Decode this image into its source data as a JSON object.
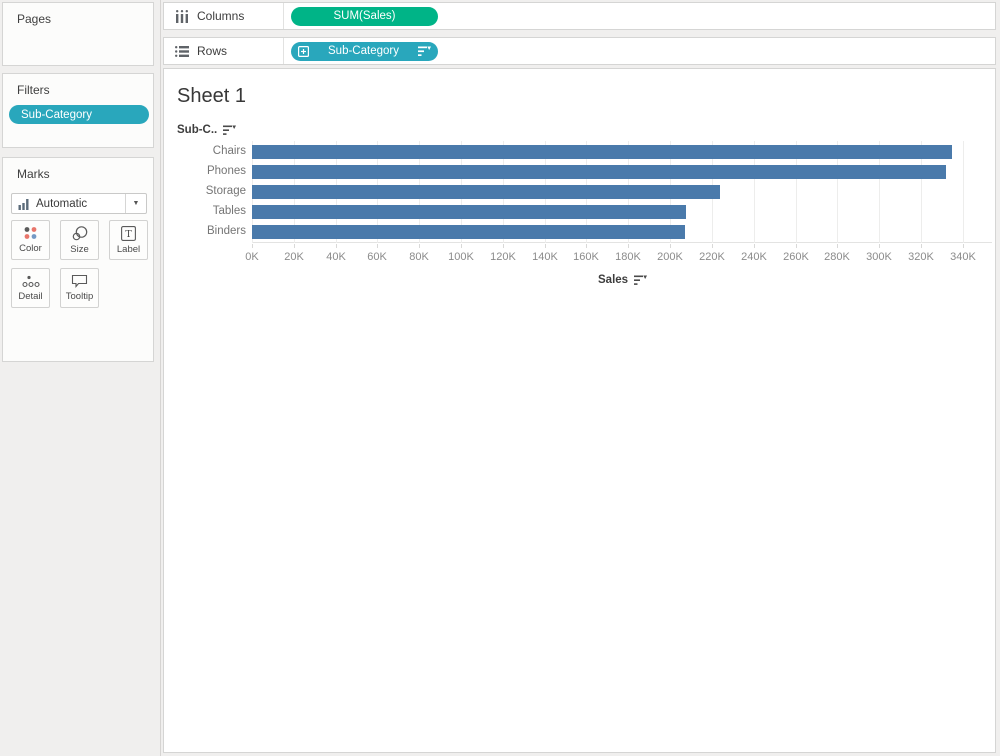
{
  "colors": {
    "dimension_pill": "#29a7bc",
    "measure_pill": "#00b487",
    "bar": "#4a7aab",
    "gridline": "#ededec"
  },
  "pages": {
    "title": "Pages"
  },
  "filters": {
    "title": "Filters",
    "pill_label": "Sub-Category"
  },
  "marks": {
    "title": "Marks",
    "mark_type_label": "Automatic",
    "buttons": [
      {
        "label": "Color",
        "icon": "color-dots-icon"
      },
      {
        "label": "Size",
        "icon": "size-circles-icon"
      },
      {
        "label": "Label",
        "icon": "label-t-icon"
      },
      {
        "label": "Detail",
        "icon": "detail-dots-icon"
      },
      {
        "label": "Tooltip",
        "icon": "tooltip-bubble-icon"
      }
    ]
  },
  "shelves": {
    "columns": {
      "label": "Columns",
      "pill_label": "SUM(Sales)"
    },
    "rows": {
      "label": "Rows",
      "pill_label": "Sub-Category",
      "pill_icons": [
        "expand-plus-icon",
        "sort-descending-icon"
      ]
    }
  },
  "chart_data": {
    "type": "bar",
    "orientation": "horizontal",
    "title": "Sheet 1",
    "row_header_label": "Sub-C..",
    "xlabel": "Sales",
    "sort": "descending",
    "categories": [
      "Chairs",
      "Phones",
      "Storage",
      "Tables",
      "Binders"
    ],
    "values": [
      335000,
      332000,
      224000,
      207500,
      207000
    ],
    "tick_values": [
      0,
      20000,
      40000,
      60000,
      80000,
      100000,
      120000,
      140000,
      160000,
      180000,
      200000,
      220000,
      240000,
      260000,
      280000,
      300000,
      320000,
      340000
    ],
    "tick_labels": [
      "0K",
      "20K",
      "40K",
      "60K",
      "80K",
      "100K",
      "120K",
      "140K",
      "160K",
      "180K",
      "200K",
      "220K",
      "240K",
      "260K",
      "280K",
      "300K",
      "320K",
      "340K"
    ],
    "xlim": [
      0,
      354000
    ],
    "grid": true,
    "legend": false
  }
}
